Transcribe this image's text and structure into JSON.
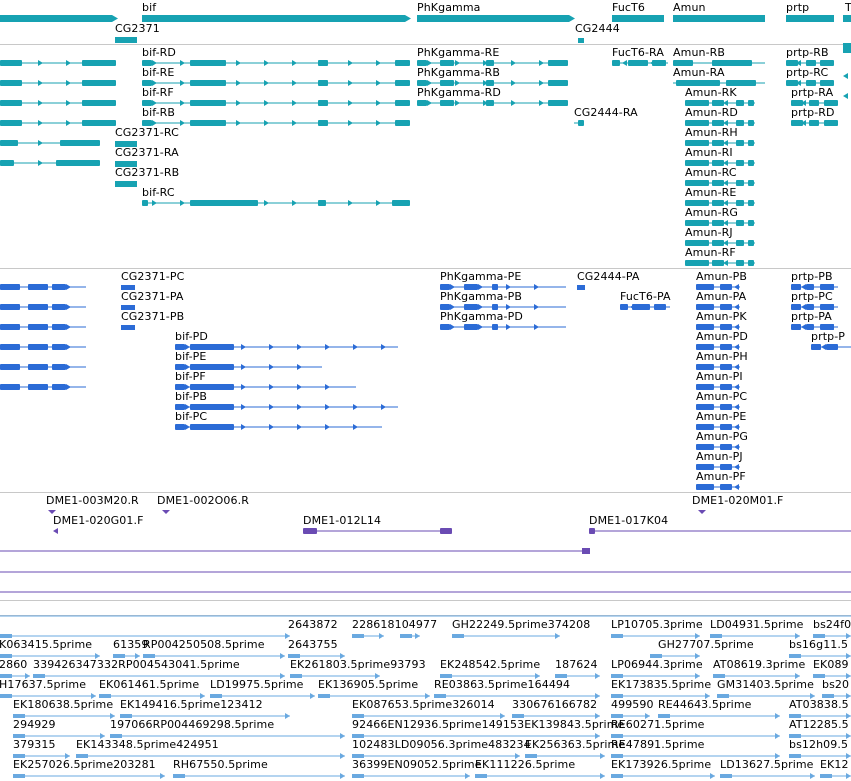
{
  "colors": {
    "gene": "#17a2b2",
    "transcript": "#17a2b2",
    "protein": "#2b6bd6",
    "probe": "#6a4bb3",
    "est": "#6aa9e0",
    "divider": "#c8c8c8",
    "text": "#000000"
  },
  "genes": [
    {
      "label": "bif"
    },
    {
      "label": "CG2371"
    },
    {
      "label": "PhKgamma"
    },
    {
      "label": "CG2444"
    },
    {
      "label": "FucT6"
    },
    {
      "label": "Amun"
    },
    {
      "label": "prtp"
    },
    {
      "label": "T"
    }
  ],
  "transcripts": [
    {
      "label": "bif-RD"
    },
    {
      "label": "bif-RE"
    },
    {
      "label": "bif-RF"
    },
    {
      "label": "bif-RB"
    },
    {
      "label": "CG2371-RC"
    },
    {
      "label": "CG2371-RA"
    },
    {
      "label": "CG2371-RB"
    },
    {
      "label": "bif-RC"
    },
    {
      "label": "PhKgamma-RE"
    },
    {
      "label": "PhKgamma-RB"
    },
    {
      "label": "PhKgamma-RD"
    },
    {
      "label": "CG2444-RA"
    },
    {
      "label": "FucT6-RA"
    },
    {
      "label": "Amun-RB"
    },
    {
      "label": "Amun-RA"
    },
    {
      "label": "Amun-RK"
    },
    {
      "label": "Amun-RD"
    },
    {
      "label": "Amun-RH"
    },
    {
      "label": "Amun-RI"
    },
    {
      "label": "Amun-RC"
    },
    {
      "label": "Amun-RE"
    },
    {
      "label": "Amun-RG"
    },
    {
      "label": "Amun-RJ"
    },
    {
      "label": "Amun-RF"
    },
    {
      "label": "prtp-RB"
    },
    {
      "label": "prtp-RC"
    },
    {
      "label": "prtp-RA"
    },
    {
      "label": "prtp-RD"
    }
  ],
  "proteins": [
    {
      "label": "CG2371-PC"
    },
    {
      "label": "CG2371-PA"
    },
    {
      "label": "CG2371-PB"
    },
    {
      "label": "bif-PD"
    },
    {
      "label": "bif-PE"
    },
    {
      "label": "bif-PF"
    },
    {
      "label": "bif-PB"
    },
    {
      "label": "bif-PC"
    },
    {
      "label": "PhKgamma-PE"
    },
    {
      "label": "PhKgamma-PB"
    },
    {
      "label": "PhKgamma-PD"
    },
    {
      "label": "CG2444-PA"
    },
    {
      "label": "FucT6-PA"
    },
    {
      "label": "Amun-PB"
    },
    {
      "label": "Amun-PA"
    },
    {
      "label": "Amun-PK"
    },
    {
      "label": "Amun-PD"
    },
    {
      "label": "Amun-PH"
    },
    {
      "label": "Amun-PI"
    },
    {
      "label": "Amun-PC"
    },
    {
      "label": "Amun-PE"
    },
    {
      "label": "Amun-PG"
    },
    {
      "label": "Amun-PJ"
    },
    {
      "label": "Amun-PF"
    },
    {
      "label": "prtp-PB"
    },
    {
      "label": "prtp-PC"
    },
    {
      "label": "prtp-PA"
    },
    {
      "label": "prtp-P"
    }
  ],
  "probes": [
    {
      "label": "DME1-003M20.R"
    },
    {
      "label": "DME1-002O06.R"
    },
    {
      "label": "DME1-020M01.F"
    },
    {
      "label": "DME1-020G01.F"
    },
    {
      "label": "DME1-012L14"
    },
    {
      "label": "DME1-017K04"
    }
  ],
  "ests": [
    {
      "label": "2643872"
    },
    {
      "label": "228618104977"
    },
    {
      "label": "GH22249.5prime374208"
    },
    {
      "label": "LP10705.3prime"
    },
    {
      "label": "LD04931.5prime"
    },
    {
      "label": "bs24f0"
    },
    {
      "label": "K063415.5prime"
    },
    {
      "label": "61359"
    },
    {
      "label": "RP004250508.5prime"
    },
    {
      "label": "2643755"
    },
    {
      "label": "GH27707.5prime"
    },
    {
      "label": "bs16g11.5"
    },
    {
      "label": "2860"
    },
    {
      "label": "339426347332RP004543041.5prime"
    },
    {
      "label": "EK261803.5prime93793"
    },
    {
      "label": "EK248542.5prime"
    },
    {
      "label": "187624"
    },
    {
      "label": "LP06944.3prime"
    },
    {
      "label": "AT08619.3prime"
    },
    {
      "label": "EK089"
    },
    {
      "label": "H17637.5prime"
    },
    {
      "label": "EK061461.5prime"
    },
    {
      "label": "LD19975.5prime"
    },
    {
      "label": "EK136905.5prime"
    },
    {
      "label": "RE03863.5prime164494"
    },
    {
      "label": "EK173835.5prime"
    },
    {
      "label": "GM31403.5prime"
    },
    {
      "label": "bs20"
    },
    {
      "label": "EK180638.5prime"
    },
    {
      "label": "EK149416.5prime123412"
    },
    {
      "label": "EK087653.5prime326014"
    },
    {
      "label": "330676166782"
    },
    {
      "label": "499590"
    },
    {
      "label": "RE44643.5prime"
    },
    {
      "label": "AT03838.5"
    },
    {
      "label": "294929"
    },
    {
      "label": "197066RP004469298.5prime"
    },
    {
      "label": "92466EN12936.5prime149153EK139843.5prime"
    },
    {
      "label": "RE60271.5prime"
    },
    {
      "label": "AT12285.5"
    },
    {
      "label": "379315"
    },
    {
      "label": "EK143348.5prime424951"
    },
    {
      "label": "102483LD09056.3prime483234"
    },
    {
      "label": "EK256363.5prime"
    },
    {
      "label": "RE47891.5prime"
    },
    {
      "label": "bs12h09.5"
    },
    {
      "label": "EK257026.5prime203281"
    },
    {
      "label": "RH67550.5prime"
    },
    {
      "label": "36399EN09052.5prime"
    },
    {
      "label": "EK111226.5prime"
    },
    {
      "label": "EK173926.5prime"
    },
    {
      "label": "LD13627.5prime"
    },
    {
      "label": "EK12"
    }
  ]
}
